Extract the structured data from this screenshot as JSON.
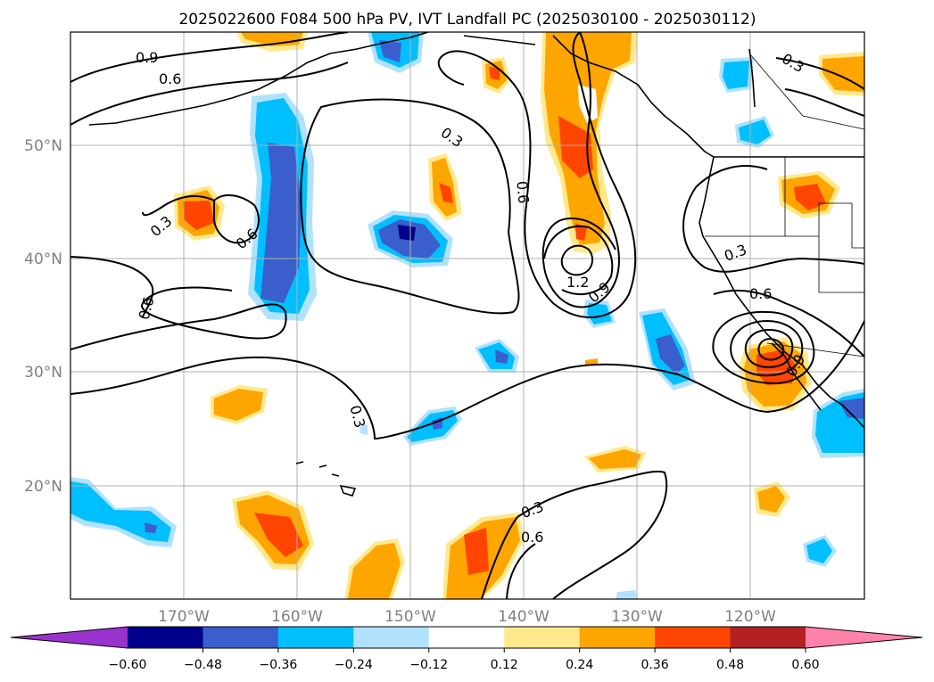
{
  "title": "2025022600 F084 500 hPa PV, IVT Landfall PC (2025030100 - 2025030112)",
  "lon_labels": [
    "170°W",
    "160°W",
    "150°W",
    "140°W",
    "130°W",
    "120°W"
  ],
  "lat_labels": [
    "50°N",
    "40°N",
    "30°N",
    "20°N"
  ],
  "colorbar": {
    "ticks": [
      "−0.60",
      "−0.48",
      "−0.36",
      "−0.24",
      "−0.12",
      "0.12",
      "0.24",
      "0.36",
      "0.48",
      "0.60"
    ],
    "colors": [
      "#9a32cd",
      "#00008b",
      "#3a5fcd",
      "#00bfff",
      "#b0e2ff",
      "#ffffff",
      "#ffe98c",
      "#ffa500",
      "#ff4500",
      "#b22222",
      "#ff82ab"
    ]
  },
  "contour_labels": {
    "a": "0.9",
    "b": "0.6",
    "c": "0.3",
    "d": "0.6",
    "e": "0.3",
    "f": "0.6",
    "g": "0.6",
    "h": "1.2",
    "i": "0.9",
    "j": "0.3",
    "k": "0.6",
    "l": "0.3",
    "m": "0.3",
    "n": "0.6",
    "o": "0.9"
  },
  "map_extent": {
    "lon": [
      -180,
      -110
    ],
    "lat": [
      10,
      60
    ]
  }
}
